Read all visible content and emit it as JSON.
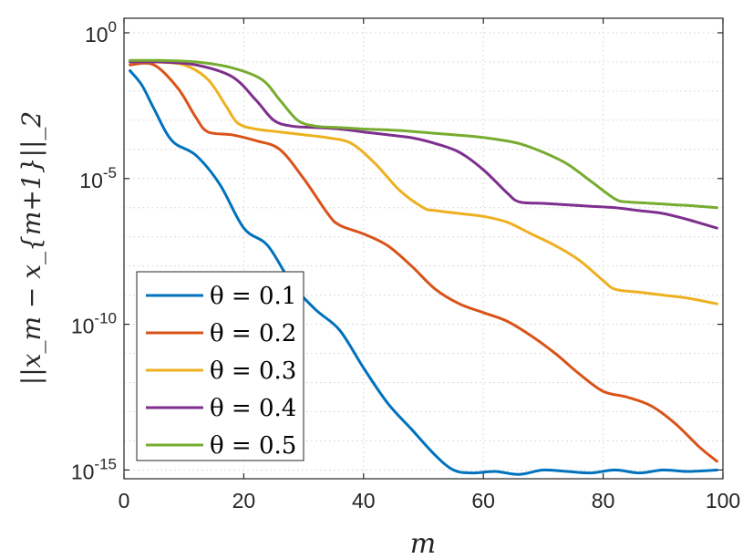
{
  "chart_data": {
    "type": "line",
    "title": "",
    "xlabel": "m",
    "ylabel": "||x_m − x_{m+1}||_2",
    "xlim": [
      0,
      100
    ],
    "ylim_log10": [
      -15.3,
      0.5
    ],
    "yscale": "log",
    "grid": true,
    "x_ticks": [
      0,
      20,
      40,
      60,
      80,
      100
    ],
    "y_ticks": [
      {
        "exponent": 0,
        "label_base": "10",
        "label_exp": "0"
      },
      {
        "exponent": -5,
        "label_base": "10",
        "label_exp": "-5"
      },
      {
        "exponent": -10,
        "label_base": "10",
        "label_exp": "-10"
      },
      {
        "exponent": -15,
        "label_base": "10",
        "label_exp": "-15"
      }
    ],
    "legend_position": "bottom-left",
    "series": [
      {
        "name": "θ = 0.1",
        "theta": "0.1",
        "color": "#0072BD",
        "x": [
          1,
          3,
          5,
          8,
          12,
          16,
          20,
          24,
          28,
          32,
          36,
          40,
          44,
          48,
          52,
          55,
          58,
          62,
          66,
          70,
          74,
          78,
          82,
          86,
          90,
          94,
          99
        ],
        "log10": [
          -1.3,
          -1.8,
          -2.6,
          -3.7,
          -4.2,
          -5.2,
          -6.7,
          -7.3,
          -8.6,
          -9.5,
          -10.2,
          -11.5,
          -12.7,
          -13.6,
          -14.5,
          -15.0,
          -15.1,
          -15.05,
          -15.15,
          -15.0,
          -15.05,
          -15.1,
          -15.0,
          -15.1,
          -15.0,
          -15.05,
          -15.0
        ]
      },
      {
        "name": "θ = 0.2",
        "theta": "0.2",
        "color": "#D95319",
        "x": [
          1,
          5,
          9,
          12,
          14,
          18,
          22,
          26,
          30,
          34,
          36,
          40,
          44,
          48,
          52,
          56,
          60,
          64,
          68,
          72,
          76,
          80,
          84,
          88,
          92,
          96,
          99
        ],
        "log10": [
          -1.1,
          -1.1,
          -1.9,
          -2.9,
          -3.4,
          -3.5,
          -3.7,
          -4.0,
          -5.0,
          -6.2,
          -6.6,
          -6.9,
          -7.3,
          -8.0,
          -8.8,
          -9.3,
          -9.6,
          -9.9,
          -10.4,
          -11.0,
          -11.7,
          -12.3,
          -12.5,
          -12.8,
          -13.4,
          -14.2,
          -14.7
        ]
      },
      {
        "name": "θ = 0.3",
        "theta": "0.3",
        "color": "#EDB120",
        "x": [
          1,
          5,
          10,
          14,
          17,
          19,
          22,
          26,
          30,
          34,
          38,
          42,
          46,
          50,
          52,
          56,
          60,
          64,
          68,
          72,
          76,
          80,
          82,
          86,
          90,
          94,
          99
        ],
        "log10": [
          -1.0,
          -1.0,
          -1.1,
          -1.6,
          -2.5,
          -3.1,
          -3.3,
          -3.4,
          -3.5,
          -3.6,
          -3.8,
          -4.5,
          -5.4,
          -6.0,
          -6.1,
          -6.2,
          -6.3,
          -6.5,
          -6.9,
          -7.3,
          -7.8,
          -8.5,
          -8.8,
          -8.9,
          -9.0,
          -9.1,
          -9.3
        ]
      },
      {
        "name": "θ = 0.4",
        "theta": "0.4",
        "color": "#7E2F8E",
        "x": [
          1,
          6,
          12,
          18,
          22,
          25,
          28,
          32,
          36,
          40,
          44,
          48,
          52,
          56,
          60,
          64,
          66,
          70,
          74,
          78,
          82,
          86,
          90,
          94,
          99
        ],
        "log10": [
          -1.0,
          -1.0,
          -1.1,
          -1.5,
          -2.3,
          -3.0,
          -3.2,
          -3.25,
          -3.3,
          -3.4,
          -3.5,
          -3.6,
          -3.8,
          -4.1,
          -4.7,
          -5.5,
          -5.8,
          -5.85,
          -5.9,
          -5.95,
          -6.0,
          -6.1,
          -6.2,
          -6.4,
          -6.7
        ]
      },
      {
        "name": "θ = 0.5",
        "theta": "0.5",
        "color": "#77AC30",
        "x": [
          1,
          6,
          12,
          18,
          23,
          26,
          29,
          32,
          36,
          40,
          46,
          52,
          58,
          62,
          66,
          70,
          74,
          78,
          82,
          84,
          88,
          92,
          96,
          99
        ],
        "log10": [
          -0.95,
          -0.95,
          -1.0,
          -1.2,
          -1.6,
          -2.3,
          -3.0,
          -3.2,
          -3.25,
          -3.3,
          -3.35,
          -3.45,
          -3.55,
          -3.65,
          -3.8,
          -4.1,
          -4.5,
          -5.1,
          -5.7,
          -5.8,
          -5.85,
          -5.9,
          -5.95,
          -6.0
        ]
      }
    ]
  }
}
